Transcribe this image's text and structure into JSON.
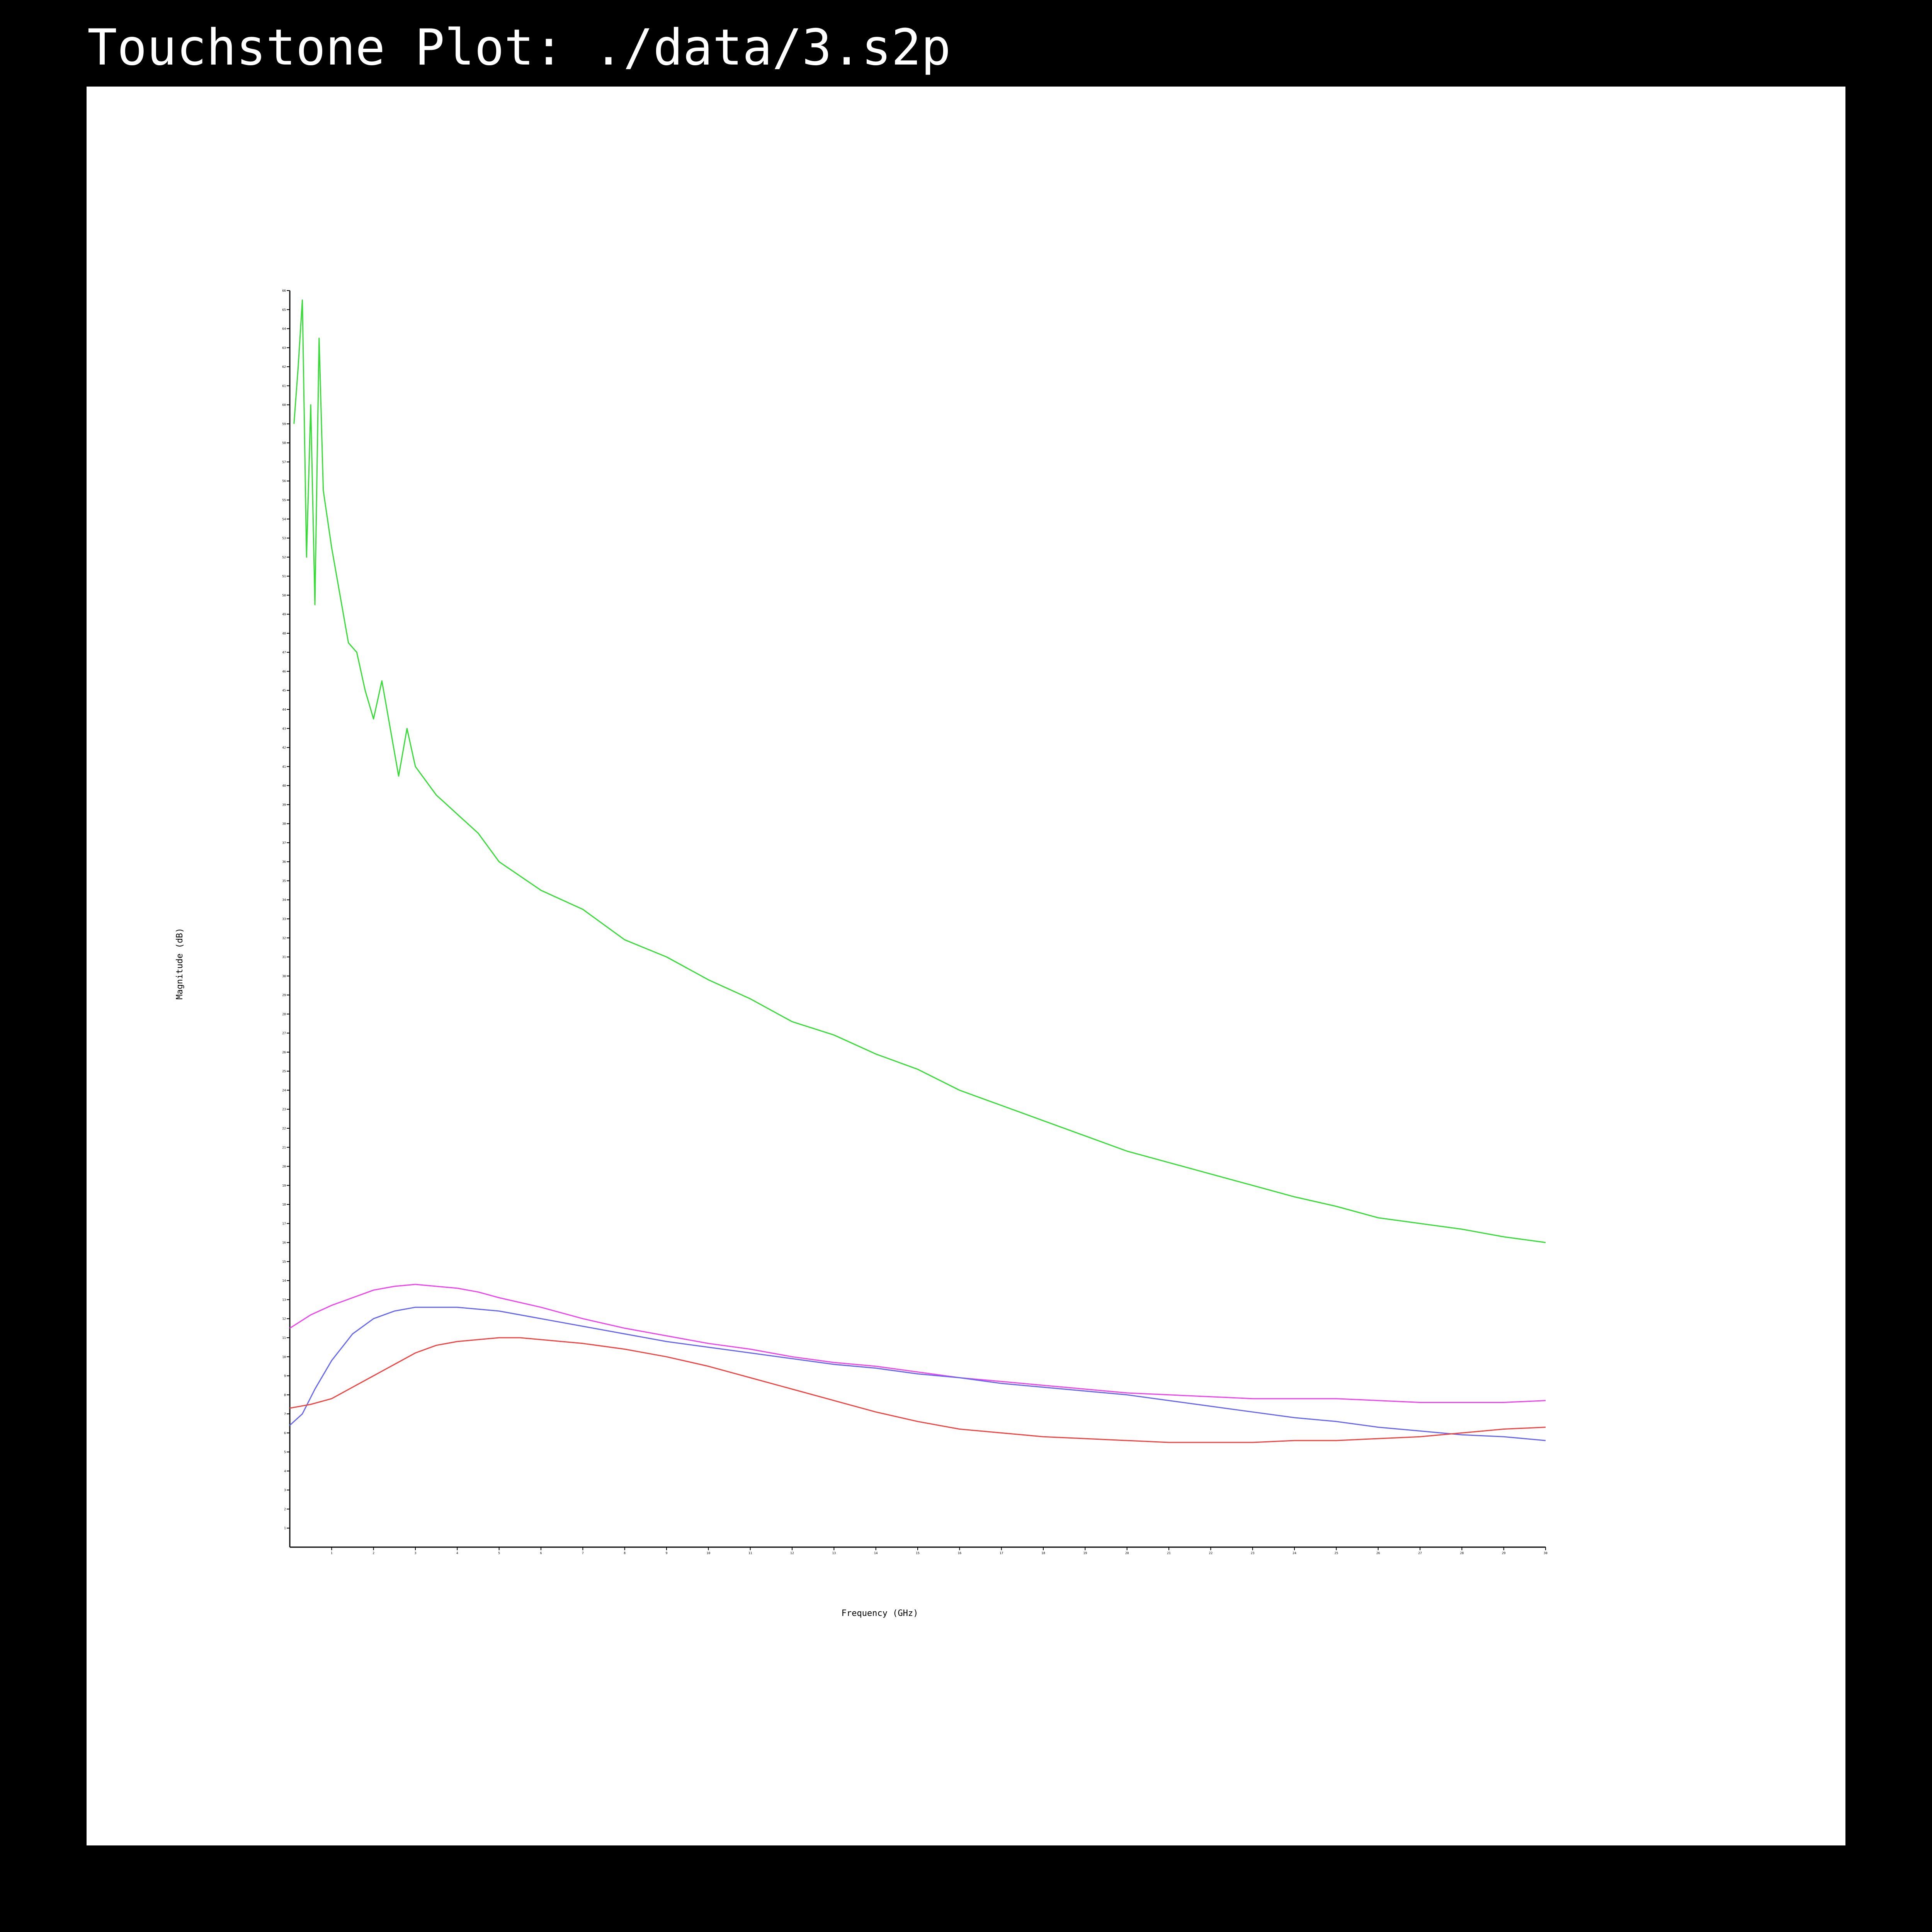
{
  "page": {
    "title": "Touchstone Plot: ./data/3.s2p"
  },
  "chart_data": {
    "type": "line",
    "title": "Touchstone Plot: ./data/3.s2p",
    "xlabel": "Frequency (GHz)",
    "ylabel": "Magnitude (dB)",
    "xlim": [
      0,
      30
    ],
    "ylim": [
      0,
      66
    ],
    "x_ticks": [
      1,
      2,
      3,
      4,
      5,
      6,
      7,
      8,
      9,
      10,
      11,
      12,
      13,
      14,
      15,
      16,
      17,
      18,
      19,
      20,
      21,
      22,
      23,
      24,
      25,
      26,
      27,
      28,
      29,
      30
    ],
    "y_ticks": [
      1,
      2,
      3,
      4,
      5,
      6,
      7,
      8,
      9,
      10,
      11,
      12,
      13,
      14,
      15,
      16,
      17,
      18,
      19,
      20,
      21,
      22,
      23,
      24,
      25,
      26,
      27,
      28,
      29,
      30,
      31,
      32,
      33,
      34,
      35,
      36,
      37,
      38,
      39,
      40,
      41,
      42,
      43,
      44,
      45,
      46,
      47,
      48,
      49,
      50,
      51,
      52,
      53,
      54,
      55,
      56,
      57,
      58,
      59,
      60,
      61,
      62,
      63,
      64,
      65,
      66
    ],
    "grid": false,
    "series": [
      {
        "color": "#33dd33",
        "x": [
          0.1,
          0.2,
          0.3,
          0.4,
          0.5,
          0.6,
          0.7,
          0.8,
          1.0,
          1.2,
          1.4,
          1.6,
          1.8,
          2.0,
          2.2,
          2.4,
          2.6,
          2.8,
          3.0,
          3.5,
          4.0,
          4.5,
          5.0,
          6.0,
          7.0,
          8.0,
          9.0,
          10.0,
          11.0,
          12.0,
          13.0,
          14.0,
          15.0,
          16.0,
          17.0,
          18.0,
          19.0,
          20.0,
          21.0,
          22.0,
          23.0,
          24.0,
          25.0,
          26.0,
          27.0,
          28.0,
          29.0,
          30.0
        ],
        "y": [
          59.0,
          62.0,
          65.5,
          52.0,
          60.0,
          49.5,
          63.5,
          55.5,
          52.5,
          50.0,
          47.5,
          47.0,
          45.0,
          43.5,
          45.5,
          43.0,
          40.5,
          43.0,
          41.0,
          39.5,
          38.5,
          37.5,
          36.0,
          34.5,
          33.5,
          31.9,
          31.0,
          29.8,
          28.8,
          27.6,
          26.9,
          25.9,
          25.1,
          24.0,
          23.2,
          22.4,
          21.6,
          20.8,
          20.2,
          19.6,
          19.0,
          18.4,
          17.9,
          17.3,
          17.0,
          16.7,
          16.3,
          16.0
        ]
      },
      {
        "color": "#ee44ee",
        "x": [
          0,
          0.5,
          1,
          1.5,
          2,
          2.5,
          3,
          3.5,
          4,
          4.5,
          5,
          6,
          7,
          8,
          9,
          10,
          11,
          12,
          13,
          14,
          15,
          16,
          17,
          18,
          19,
          20,
          21,
          22,
          23,
          24,
          25,
          26,
          27,
          28,
          29,
          30
        ],
        "y": [
          11.5,
          12.2,
          12.7,
          13.1,
          13.5,
          13.7,
          13.8,
          13.7,
          13.6,
          13.4,
          13.1,
          12.6,
          12.0,
          11.5,
          11.1,
          10.7,
          10.4,
          10.0,
          9.7,
          9.5,
          9.2,
          8.9,
          8.7,
          8.5,
          8.3,
          8.1,
          8.0,
          7.9,
          7.8,
          7.8,
          7.8,
          7.7,
          7.6,
          7.6,
          7.6,
          7.7
        ]
      },
      {
        "color": "#6666ee",
        "x": [
          0,
          0.3,
          0.6,
          1,
          1.5,
          2,
          2.5,
          3,
          3.5,
          4,
          5,
          6,
          7,
          8,
          9,
          10,
          11,
          12,
          13,
          14,
          15,
          16,
          17,
          18,
          19,
          20,
          21,
          22,
          23,
          24,
          25,
          26,
          27,
          28,
          29,
          30
        ],
        "y": [
          6.4,
          7.0,
          8.3,
          9.8,
          11.2,
          12.0,
          12.4,
          12.6,
          12.6,
          12.6,
          12.4,
          12.0,
          11.6,
          11.2,
          10.8,
          10.5,
          10.2,
          9.9,
          9.6,
          9.4,
          9.1,
          8.9,
          8.6,
          8.4,
          8.2,
          8.0,
          7.7,
          7.4,
          7.1,
          6.8,
          6.6,
          6.3,
          6.1,
          5.9,
          5.8,
          5.6
        ]
      },
      {
        "color": "#ee4444",
        "x": [
          0,
          0.5,
          1,
          1.5,
          2,
          2.5,
          3,
          3.5,
          4,
          4.5,
          5,
          5.5,
          6,
          6.5,
          7,
          8,
          9,
          10,
          11,
          12,
          13,
          14,
          15,
          16,
          17,
          18,
          19,
          20,
          21,
          22,
          23,
          24,
          25,
          26,
          27,
          28,
          29,
          30
        ],
        "y": [
          7.3,
          7.5,
          7.8,
          8.4,
          9.0,
          9.6,
          10.2,
          10.6,
          10.8,
          10.9,
          11.0,
          11.0,
          10.9,
          10.8,
          10.7,
          10.4,
          10.0,
          9.5,
          8.9,
          8.3,
          7.7,
          7.1,
          6.6,
          6.2,
          6.0,
          5.8,
          5.7,
          5.6,
          5.5,
          5.5,
          5.5,
          5.6,
          5.6,
          5.7,
          5.8,
          6.0,
          6.2,
          6.3
        ]
      }
    ]
  }
}
